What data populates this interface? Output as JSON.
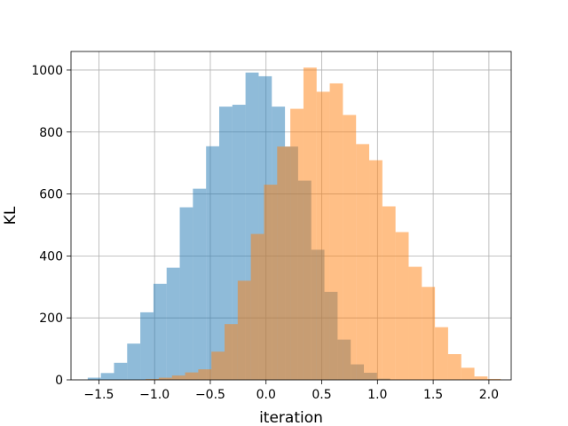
{
  "chart_data": {
    "type": "bar",
    "title": "",
    "xlabel": "iteration",
    "ylabel": "KL",
    "xlim": [
      -1.75,
      2.2
    ],
    "ylim": [
      0,
      1060
    ],
    "xticks": [
      -1.5,
      -1.0,
      -0.5,
      0.0,
      0.5,
      1.0,
      1.5,
      2.0
    ],
    "xtick_labels": [
      "−1.5",
      "−1.0",
      "−0.5",
      "0.0",
      "0.5",
      "1.0",
      "1.5",
      "2.0"
    ],
    "yticks": [
      0,
      200,
      400,
      600,
      800,
      1000
    ],
    "ytick_labels": [
      "0",
      "200",
      "400",
      "600",
      "800",
      "1000"
    ],
    "grid": true,
    "series": [
      {
        "color": "#1f77b4",
        "alpha": 0.5,
        "bin_width": 0.118,
        "bin_starts": [
          -1.6,
          -1.482,
          -1.364,
          -1.246,
          -1.128,
          -1.01,
          -0.892,
          -0.774,
          -0.656,
          -0.538,
          -0.42,
          -0.302,
          -0.184,
          -0.066,
          0.052,
          0.17,
          0.288,
          0.406,
          0.524,
          0.642,
          0.76,
          0.878,
          0.996
        ],
        "values": [
          7,
          22,
          55,
          117,
          218,
          310,
          362,
          557,
          617,
          754,
          882,
          888,
          992,
          980,
          882,
          753,
          643,
          420,
          284,
          130,
          50,
          23,
          4
        ]
      },
      {
        "color": "#ff7f0e",
        "alpha": 0.5,
        "bin_width": 0.118,
        "bin_starts": [
          -1.08,
          -0.962,
          -0.844,
          -0.726,
          -0.608,
          -0.49,
          -0.372,
          -0.254,
          -0.136,
          -0.018,
          0.1,
          0.218,
          0.336,
          0.454,
          0.572,
          0.69,
          0.808,
          0.926,
          1.044,
          1.162,
          1.28,
          1.398,
          1.516,
          1.634,
          1.752,
          1.87,
          1.988
        ],
        "values": [
          3,
          7,
          14,
          24,
          34,
          91,
          180,
          320,
          471,
          630,
          753,
          875,
          1008,
          930,
          957,
          855,
          761,
          709,
          560,
          477,
          365,
          300,
          170,
          83,
          39,
          11,
          3
        ]
      }
    ]
  }
}
